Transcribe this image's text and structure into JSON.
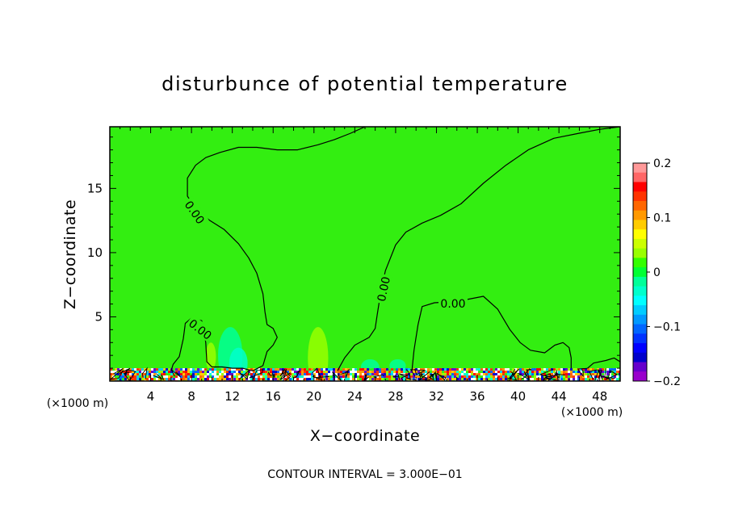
{
  "chart_data": {
    "type": "heatmap",
    "title": "disturbunce of potential temperature",
    "xlabel": "X−coordinate",
    "ylabel": "Z−coordinate",
    "x_unit_left": "(×1000 m)",
    "x_unit_right": "(×1000 m)",
    "footer": "CONTOUR INTERVAL = 3.000E−01",
    "xlim": [
      0,
      50
    ],
    "ylim": [
      0,
      19.8
    ],
    "x_ticks": [
      4,
      8,
      12,
      16,
      20,
      24,
      28,
      32,
      36,
      40,
      44,
      48
    ],
    "y_ticks": [
      5,
      10,
      15
    ],
    "colorbar": {
      "min": -0.2,
      "max": 0.2,
      "ticks": [
        {
          "value": 0.2,
          "label": "0.2"
        },
        {
          "value": 0.1,
          "label": "0.1"
        },
        {
          "value": 0,
          "label": "0"
        },
        {
          "value": -0.1,
          "label": "−0.1"
        },
        {
          "value": -0.2,
          "label": "−0.2"
        }
      ],
      "colors_top_to_bottom": [
        "#ff9999",
        "#ff6666",
        "#ff0000",
        "#ff3300",
        "#ff6600",
        "#ff9900",
        "#ffcc00",
        "#ffff00",
        "#ccff00",
        "#99ff00",
        "#33ff00",
        "#00ff33",
        "#00ff99",
        "#00ffcc",
        "#00ffff",
        "#00ccff",
        "#0099ff",
        "#0066ff",
        "#0033ff",
        "#0000ff",
        "#0000cc",
        "#6600cc",
        "#9900cc"
      ]
    },
    "background_value": 0,
    "background_color": "#33ee11",
    "contour_label": "0.00",
    "contours": [
      {
        "label": "0.00",
        "points": [
          [
            6.0,
            0.8
          ],
          [
            6.2,
            1.3
          ],
          [
            6.8,
            1.9
          ],
          [
            7.2,
            3.3
          ],
          [
            7.4,
            4.5
          ],
          [
            8.0,
            4.9
          ],
          [
            9.0,
            4.7
          ],
          [
            9.2,
            4.0
          ],
          [
            9.4,
            3.0
          ],
          [
            9.5,
            1.5
          ],
          [
            10.0,
            1.1
          ],
          [
            11.0,
            1.1
          ],
          [
            12.0,
            1.0
          ],
          [
            13.0,
            1.0
          ],
          [
            14.0,
            0.8
          ],
          [
            15.0,
            1.2
          ],
          [
            15.4,
            2.3
          ],
          [
            16.0,
            2.8
          ],
          [
            16.4,
            3.4
          ],
          [
            16.0,
            4.1
          ],
          [
            15.4,
            4.4
          ],
          [
            15.2,
            5.4
          ],
          [
            15.0,
            6.8
          ],
          [
            14.4,
            8.4
          ],
          [
            13.6,
            9.6
          ],
          [
            12.6,
            10.7
          ],
          [
            11.2,
            11.8
          ],
          [
            9.8,
            12.5
          ],
          [
            8.6,
            13.2
          ],
          [
            7.6,
            14.4
          ],
          [
            7.6,
            15.8
          ],
          [
            8.4,
            16.8
          ],
          [
            9.4,
            17.4
          ],
          [
            10.8,
            17.8
          ],
          [
            12.6,
            18.2
          ],
          [
            14.4,
            18.2
          ],
          [
            16.4,
            18.0
          ],
          [
            18.4,
            18.0
          ],
          [
            20.4,
            18.4
          ],
          [
            22.0,
            18.8
          ],
          [
            23.6,
            19.3
          ],
          [
            25.0,
            19.8
          ]
        ]
      },
      {
        "label": "0.00",
        "points": [
          [
            22.3,
            0.8
          ],
          [
            23.0,
            1.8
          ],
          [
            24.0,
            2.8
          ],
          [
            25.4,
            3.4
          ],
          [
            26.0,
            4.1
          ],
          [
            26.2,
            5.2
          ],
          [
            26.4,
            6.2
          ],
          [
            26.6,
            7.2
          ],
          [
            27.0,
            8.6
          ],
          [
            28.0,
            10.6
          ],
          [
            29.0,
            11.6
          ],
          [
            30.6,
            12.3
          ],
          [
            32.4,
            12.9
          ],
          [
            34.4,
            13.8
          ],
          [
            36.6,
            15.4
          ],
          [
            38.8,
            16.8
          ],
          [
            41.0,
            18.0
          ],
          [
            43.5,
            18.9
          ],
          [
            46.0,
            19.3
          ],
          [
            48.0,
            19.6
          ],
          [
            50.0,
            19.8
          ]
        ]
      },
      {
        "label": "0.00",
        "points": [
          [
            29.6,
            0.8
          ],
          [
            29.8,
            2.4
          ],
          [
            30.2,
            4.4
          ],
          [
            30.6,
            5.8
          ],
          [
            31.8,
            6.1
          ],
          [
            34.0,
            6.2
          ],
          [
            36.6,
            6.6
          ],
          [
            38.0,
            5.6
          ],
          [
            39.2,
            4.0
          ],
          [
            40.2,
            3.0
          ],
          [
            41.2,
            2.4
          ],
          [
            42.6,
            2.2
          ],
          [
            43.6,
            2.8
          ],
          [
            44.4,
            3.0
          ],
          [
            45.0,
            2.6
          ],
          [
            45.2,
            1.8
          ],
          [
            45.2,
            1.0
          ]
        ]
      },
      {
        "label": "",
        "points": [
          [
            46.8,
            1.0
          ],
          [
            47.4,
            1.4
          ],
          [
            48.6,
            1.6
          ],
          [
            49.4,
            1.8
          ],
          [
            50.0,
            1.5
          ]
        ]
      }
    ],
    "blobs": [
      {
        "x": 11.8,
        "y": 2.0,
        "rx": 1.2,
        "ry": 2.2,
        "color": "#00ff99"
      },
      {
        "x": 12.6,
        "y": 1.4,
        "rx": 0.9,
        "ry": 1.2,
        "color": "#00ffcc"
      },
      {
        "x": 20.4,
        "y": 1.8,
        "rx": 1.0,
        "ry": 2.4,
        "color": "#99ff00"
      },
      {
        "x": 9.9,
        "y": 1.9,
        "rx": 0.5,
        "ry": 1.1,
        "color": "#99ff00"
      },
      {
        "x": 25.5,
        "y": 1.1,
        "rx": 0.9,
        "ry": 0.6,
        "color": "#00ff99"
      },
      {
        "x": 28.2,
        "y": 1.2,
        "rx": 0.8,
        "ry": 0.5,
        "color": "#00ff99"
      }
    ],
    "noise_band_top": 1.0
  }
}
